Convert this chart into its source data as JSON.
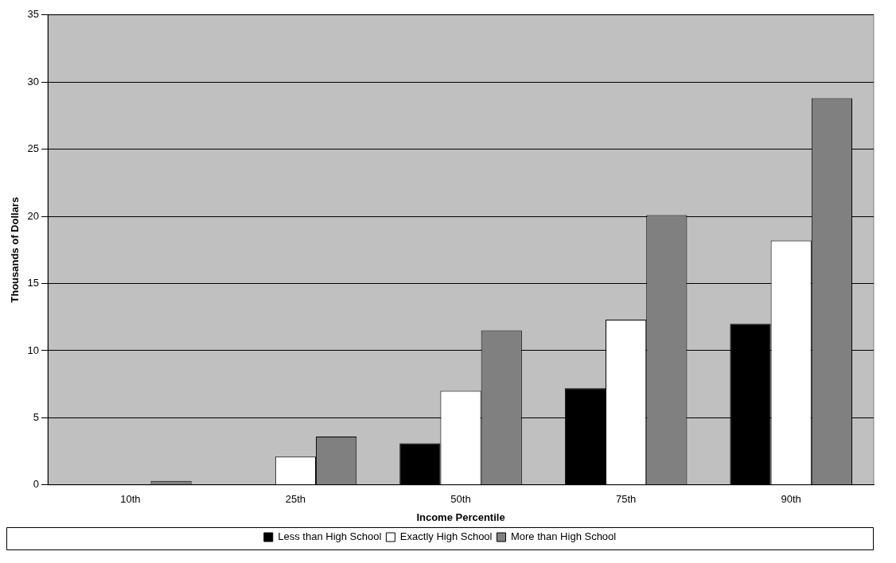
{
  "chart_data": {
    "type": "bar",
    "xlabel": "Income Percentile",
    "ylabel": "Thousands of Dollars",
    "categories": [
      "10th",
      "25th",
      "50th",
      "75th",
      "90th"
    ],
    "series": [
      {
        "name": "Less than High School",
        "color": "#000000",
        "values": [
          0,
          0,
          3.1,
          7.2,
          12.0
        ]
      },
      {
        "name": "Exactly High School",
        "color": "#ffffff",
        "values": [
          0,
          2.1,
          7.0,
          12.3,
          18.2
        ]
      },
      {
        "name": "More than High School",
        "color": "#808080",
        "values": [
          0.3,
          3.6,
          11.5,
          20.1,
          28.8
        ]
      }
    ],
    "ylim": [
      0,
      35
    ],
    "yticks": [
      0,
      5,
      10,
      15,
      20,
      25,
      30,
      35
    ],
    "grid": "y",
    "legend": "bottom"
  }
}
